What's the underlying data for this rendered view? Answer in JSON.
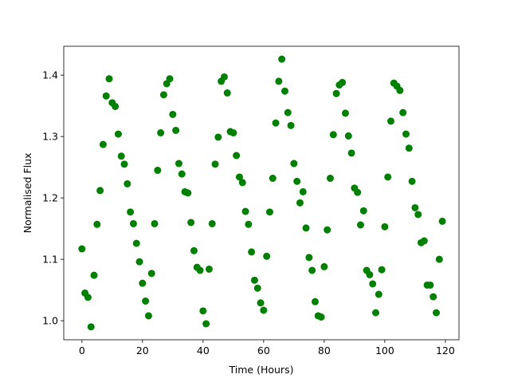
{
  "chart_data": {
    "type": "scatter",
    "x_label": "Time (Hours)",
    "y_label": "Normalised Flux",
    "color": "#008000",
    "x": [
      0,
      1,
      2,
      3,
      4,
      5,
      6,
      7,
      8,
      9,
      10,
      11,
      12,
      13,
      14,
      15,
      16,
      17,
      18,
      19,
      20,
      21,
      22,
      23,
      24,
      25,
      26,
      27,
      28,
      29,
      30,
      31,
      32,
      33,
      34,
      35,
      36,
      37,
      38,
      39,
      40,
      41,
      42,
      43,
      44,
      45,
      46,
      47,
      48,
      49,
      50,
      51,
      52,
      53,
      54,
      55,
      56,
      57,
      58,
      59,
      60,
      61,
      62,
      63,
      64,
      65,
      66,
      67,
      68,
      69,
      70,
      71,
      72,
      73,
      74,
      75,
      76,
      77,
      78,
      79,
      80,
      81,
      82,
      83,
      84,
      85,
      86,
      87,
      88,
      89,
      90,
      91,
      92,
      93,
      94,
      95,
      96,
      97,
      98,
      99,
      100,
      101,
      102,
      103,
      104,
      105,
      106,
      107,
      108,
      109,
      110,
      111,
      112,
      113,
      114,
      115,
      116,
      117,
      118,
      119
    ],
    "values": [
      1.117,
      1.045,
      1.038,
      0.99,
      1.074,
      1.157,
      1.212,
      1.287,
      1.366,
      1.394,
      1.355,
      1.349,
      1.304,
      1.268,
      1.255,
      1.223,
      1.177,
      1.158,
      1.126,
      1.096,
      1.061,
      1.032,
      1.008,
      1.077,
      1.158,
      1.245,
      1.306,
      1.368,
      1.386,
      1.394,
      1.336,
      1.31,
      1.256,
      1.239,
      1.21,
      1.208,
      1.16,
      1.114,
      1.087,
      1.082,
      1.016,
      0.995,
      1.084,
      1.158,
      1.255,
      1.299,
      1.39,
      1.397,
      1.371,
      1.308,
      1.306,
      1.269,
      1.234,
      1.225,
      1.178,
      1.157,
      1.112,
      1.066,
      1.053,
      1.029,
      1.017,
      1.105,
      1.177,
      1.232,
      1.322,
      1.39,
      1.426,
      1.374,
      1.339,
      1.318,
      1.256,
      1.227,
      1.192,
      1.21,
      1.151,
      1.103,
      1.082,
      1.031,
      1.008,
      1.006,
      1.088,
      1.148,
      1.232,
      1.303,
      1.37,
      1.384,
      1.388,
      1.338,
      1.301,
      1.273,
      1.216,
      1.209,
      1.156,
      1.179,
      1.082,
      1.075,
      1.06,
      1.013,
      1.043,
      1.083,
      1.153,
      1.234,
      1.325,
      1.387,
      1.382,
      1.375,
      1.339,
      1.304,
      1.281,
      1.227,
      1.184,
      1.173,
      1.127,
      1.13,
      1.058,
      1.058,
      1.039,
      1.013,
      1.1,
      1.162
    ],
    "xlim": [
      -6,
      124.5
    ],
    "ylim": [
      0.969,
      1.447
    ],
    "xticks": [
      0,
      20,
      40,
      60,
      80,
      100,
      120
    ],
    "yticks": [
      {
        "value": 1,
        "label": "1.0"
      },
      1.1,
      1.2,
      1.3,
      1.4
    ]
  }
}
